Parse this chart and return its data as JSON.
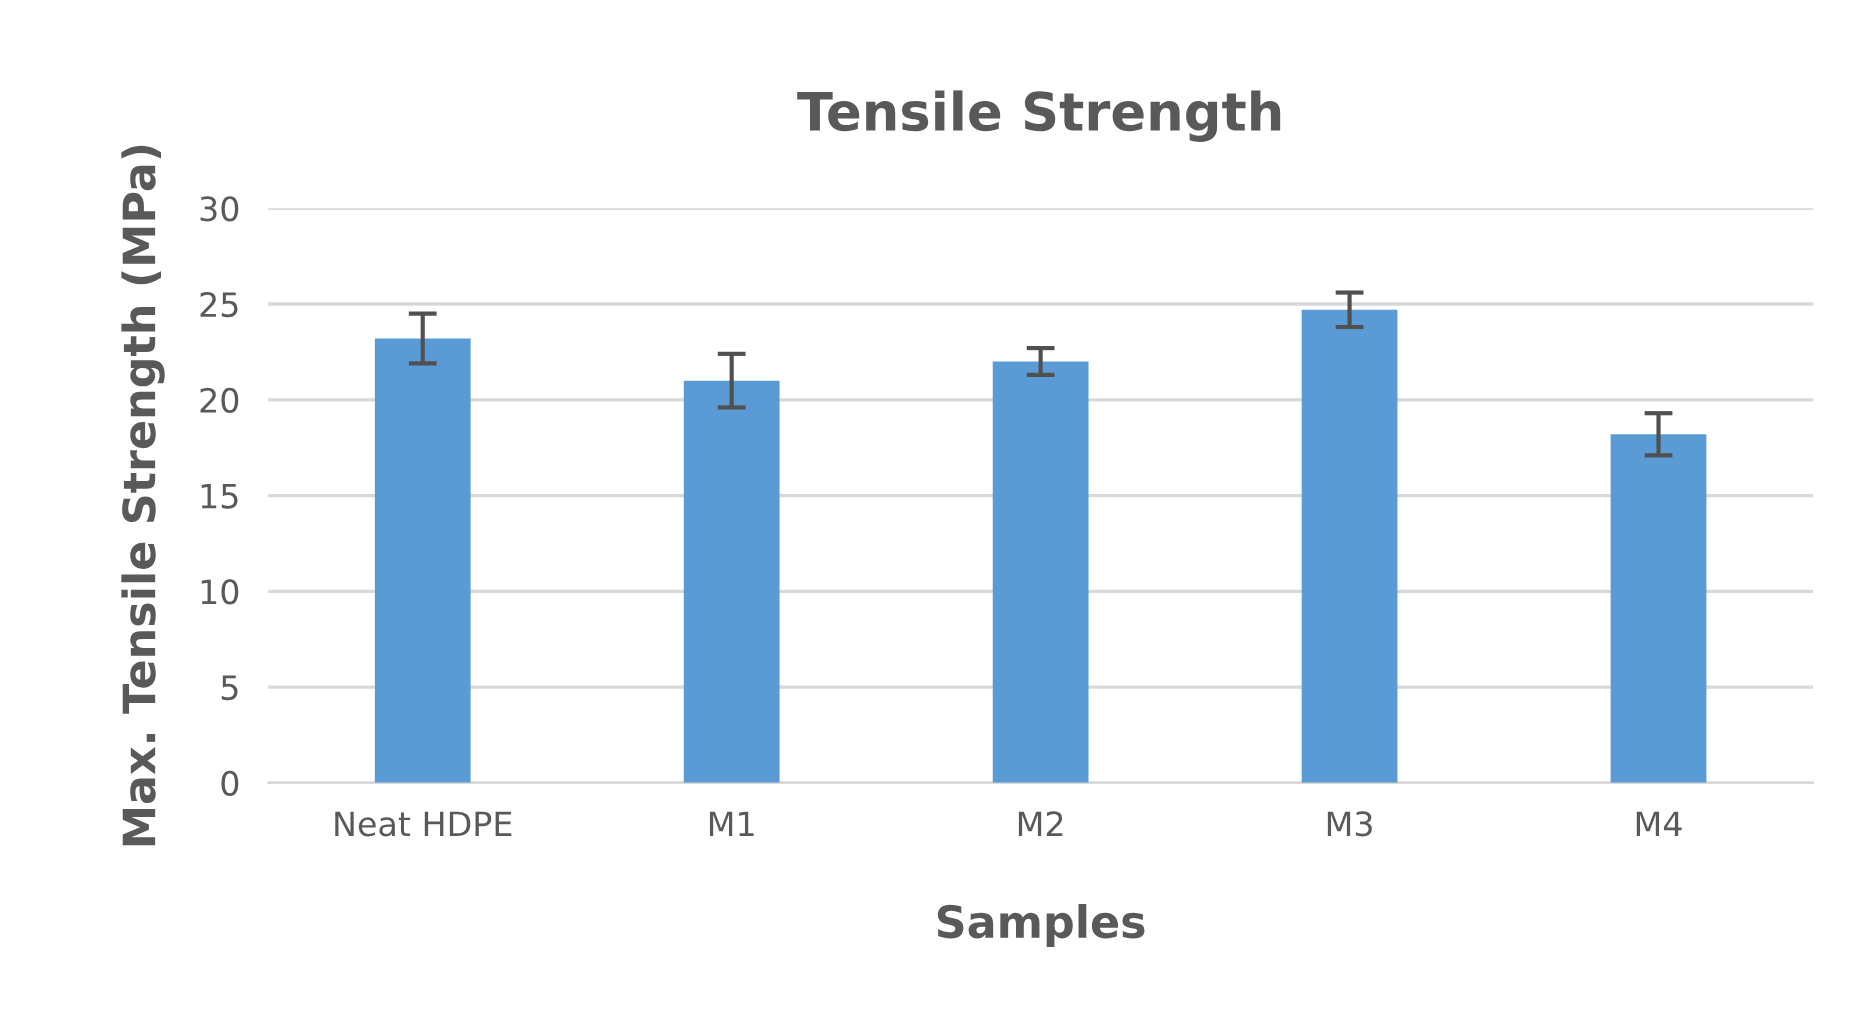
{
  "chart_data": {
    "type": "bar",
    "title": "Tensile Strength",
    "xlabel": "Samples",
    "ylabel": "Max. Tensile Strength (MPa)",
    "categories": [
      "Neat HDPE",
      "M1",
      "M2",
      "M3",
      "M4"
    ],
    "values": [
      23.2,
      21.0,
      22.0,
      24.7,
      18.2
    ],
    "errors": [
      1.3,
      1.4,
      0.7,
      0.9,
      1.1
    ],
    "color": "#5b9bd5",
    "ylim": [
      0,
      30
    ],
    "yticks": [
      0,
      5,
      10,
      15,
      20,
      25,
      30
    ],
    "grid": "y"
  }
}
